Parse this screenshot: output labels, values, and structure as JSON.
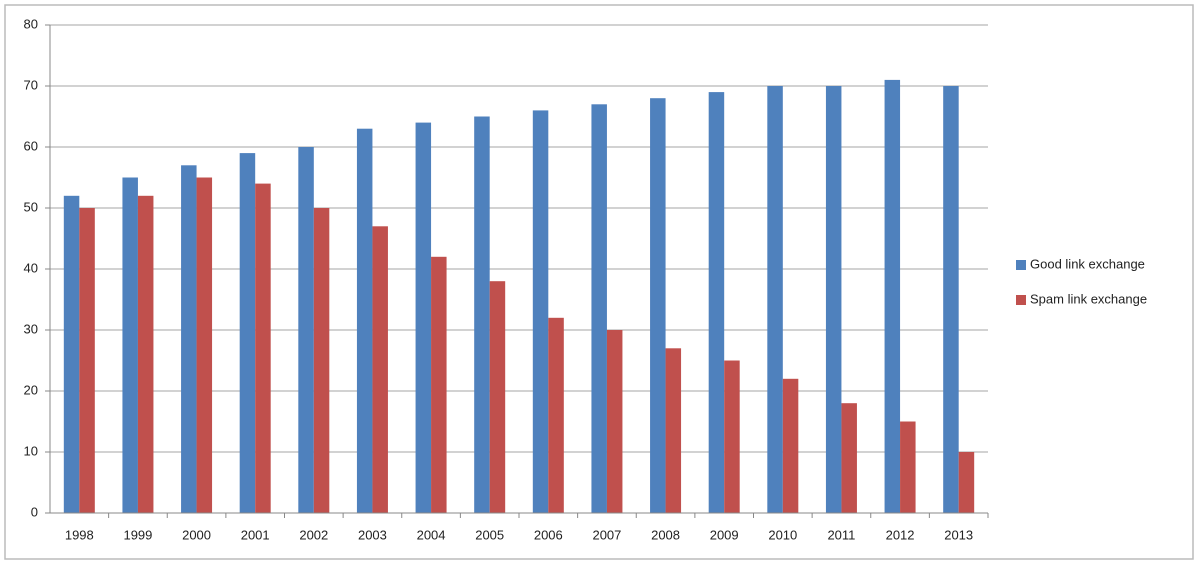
{
  "chart_data": {
    "type": "bar",
    "categories": [
      "1998",
      "1999",
      "2000",
      "2001",
      "2002",
      "2003",
      "2004",
      "2005",
      "2006",
      "2007",
      "2008",
      "2009",
      "2010",
      "2011",
      "2012",
      "2013"
    ],
    "series": [
      {
        "name": "Good link exchange",
        "color": "#4f81bd",
        "values": [
          52,
          55,
          57,
          59,
          60,
          63,
          64,
          65,
          66,
          67,
          68,
          69,
          70,
          70,
          71,
          70
        ]
      },
      {
        "name": "Spam link exchange",
        "color": "#c0504d",
        "values": [
          50,
          52,
          55,
          54,
          50,
          47,
          42,
          38,
          32,
          30,
          27,
          25,
          22,
          18,
          15,
          10
        ]
      }
    ],
    "ylim": [
      0,
      80
    ],
    "yticks": [
      0,
      10,
      20,
      30,
      40,
      50,
      60,
      70,
      80
    ],
    "grid": true,
    "legend": "right"
  }
}
